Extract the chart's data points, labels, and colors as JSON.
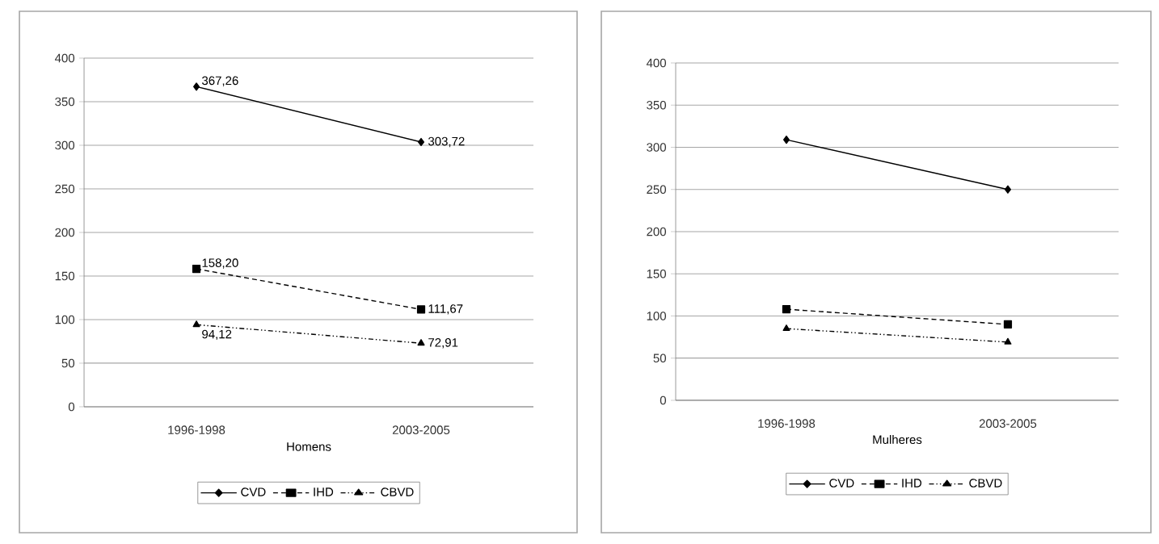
{
  "chart_data": [
    {
      "type": "line",
      "xlabel": "Homens",
      "categories": [
        "1996-1998",
        "2003-2005"
      ],
      "ylim": [
        0,
        400
      ],
      "yticks": [
        0,
        50,
        100,
        150,
        200,
        250,
        300,
        350,
        400
      ],
      "grid": "y",
      "legend": "bottom",
      "series": [
        {
          "name": "CVD",
          "color": "#000000",
          "marker": "diamond",
          "line_style": "solid",
          "values": [
            367.26,
            303.72
          ],
          "value_labels": [
            "367,26",
            "303,72"
          ]
        },
        {
          "name": "IHD",
          "color": "#000000",
          "marker": "square",
          "line_style": "dashed",
          "values": [
            158.2,
            111.67
          ],
          "value_labels": [
            "158,20",
            "111,67"
          ]
        },
        {
          "name": "CBVD",
          "color": "#000000",
          "marker": "triangle",
          "line_style": "dashdot",
          "values": [
            94.12,
            72.91
          ],
          "value_labels": [
            "94,12",
            "72,91"
          ]
        }
      ]
    },
    {
      "type": "line",
      "xlabel": "Mulheres",
      "categories": [
        "1996-1998",
        "2003-2005"
      ],
      "ylim": [
        0,
        400
      ],
      "yticks": [
        0,
        50,
        100,
        150,
        200,
        250,
        300,
        350,
        400
      ],
      "grid": "y",
      "legend": "bottom",
      "series": [
        {
          "name": "CVD",
          "color": "#000000",
          "marker": "diamond",
          "line_style": "solid",
          "values": [
            309,
            250
          ]
        },
        {
          "name": "IHD",
          "color": "#000000",
          "marker": "square",
          "line_style": "dashed",
          "values": [
            108,
            90
          ]
        },
        {
          "name": "CBVD",
          "color": "#000000",
          "marker": "triangle",
          "line_style": "dashdot",
          "values": [
            85,
            69
          ]
        }
      ]
    }
  ]
}
